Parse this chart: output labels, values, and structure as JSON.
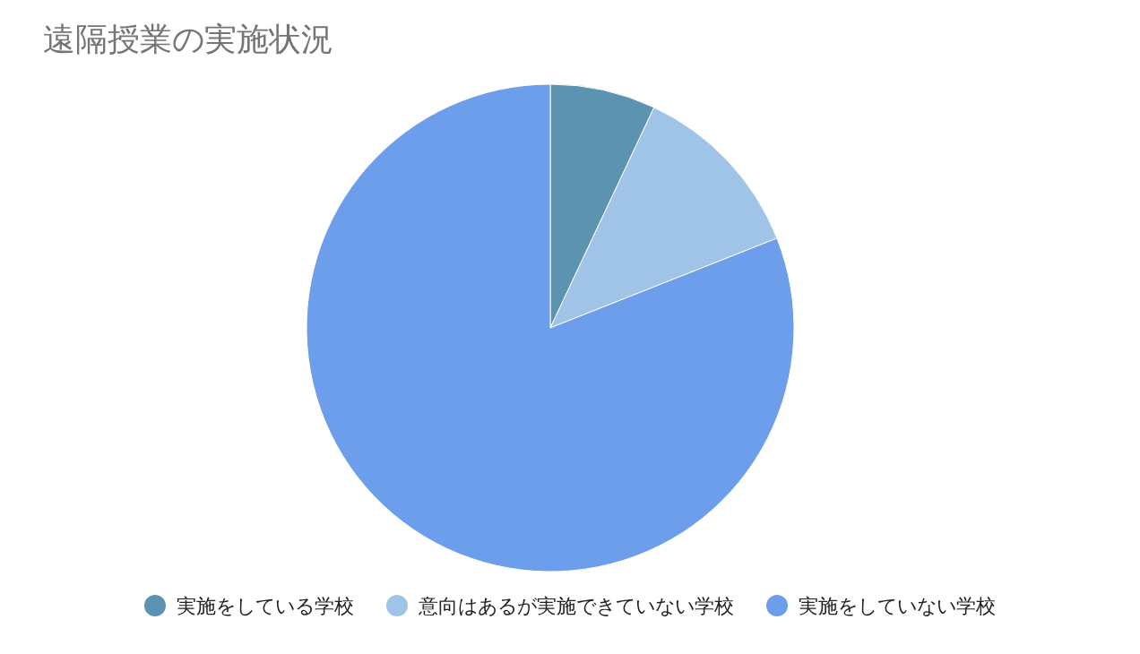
{
  "chart_data": {
    "type": "pie",
    "title": "遠隔授業の実施状況",
    "categories": [
      "実施をしている学校",
      "意向はあるが実施できていない学校",
      "実施をしていない学校"
    ],
    "values": [
      7,
      12,
      81
    ],
    "colors": [
      "#5b93b0",
      "#a0c4e8",
      "#6d9eeb"
    ],
    "legend": "bottom"
  }
}
